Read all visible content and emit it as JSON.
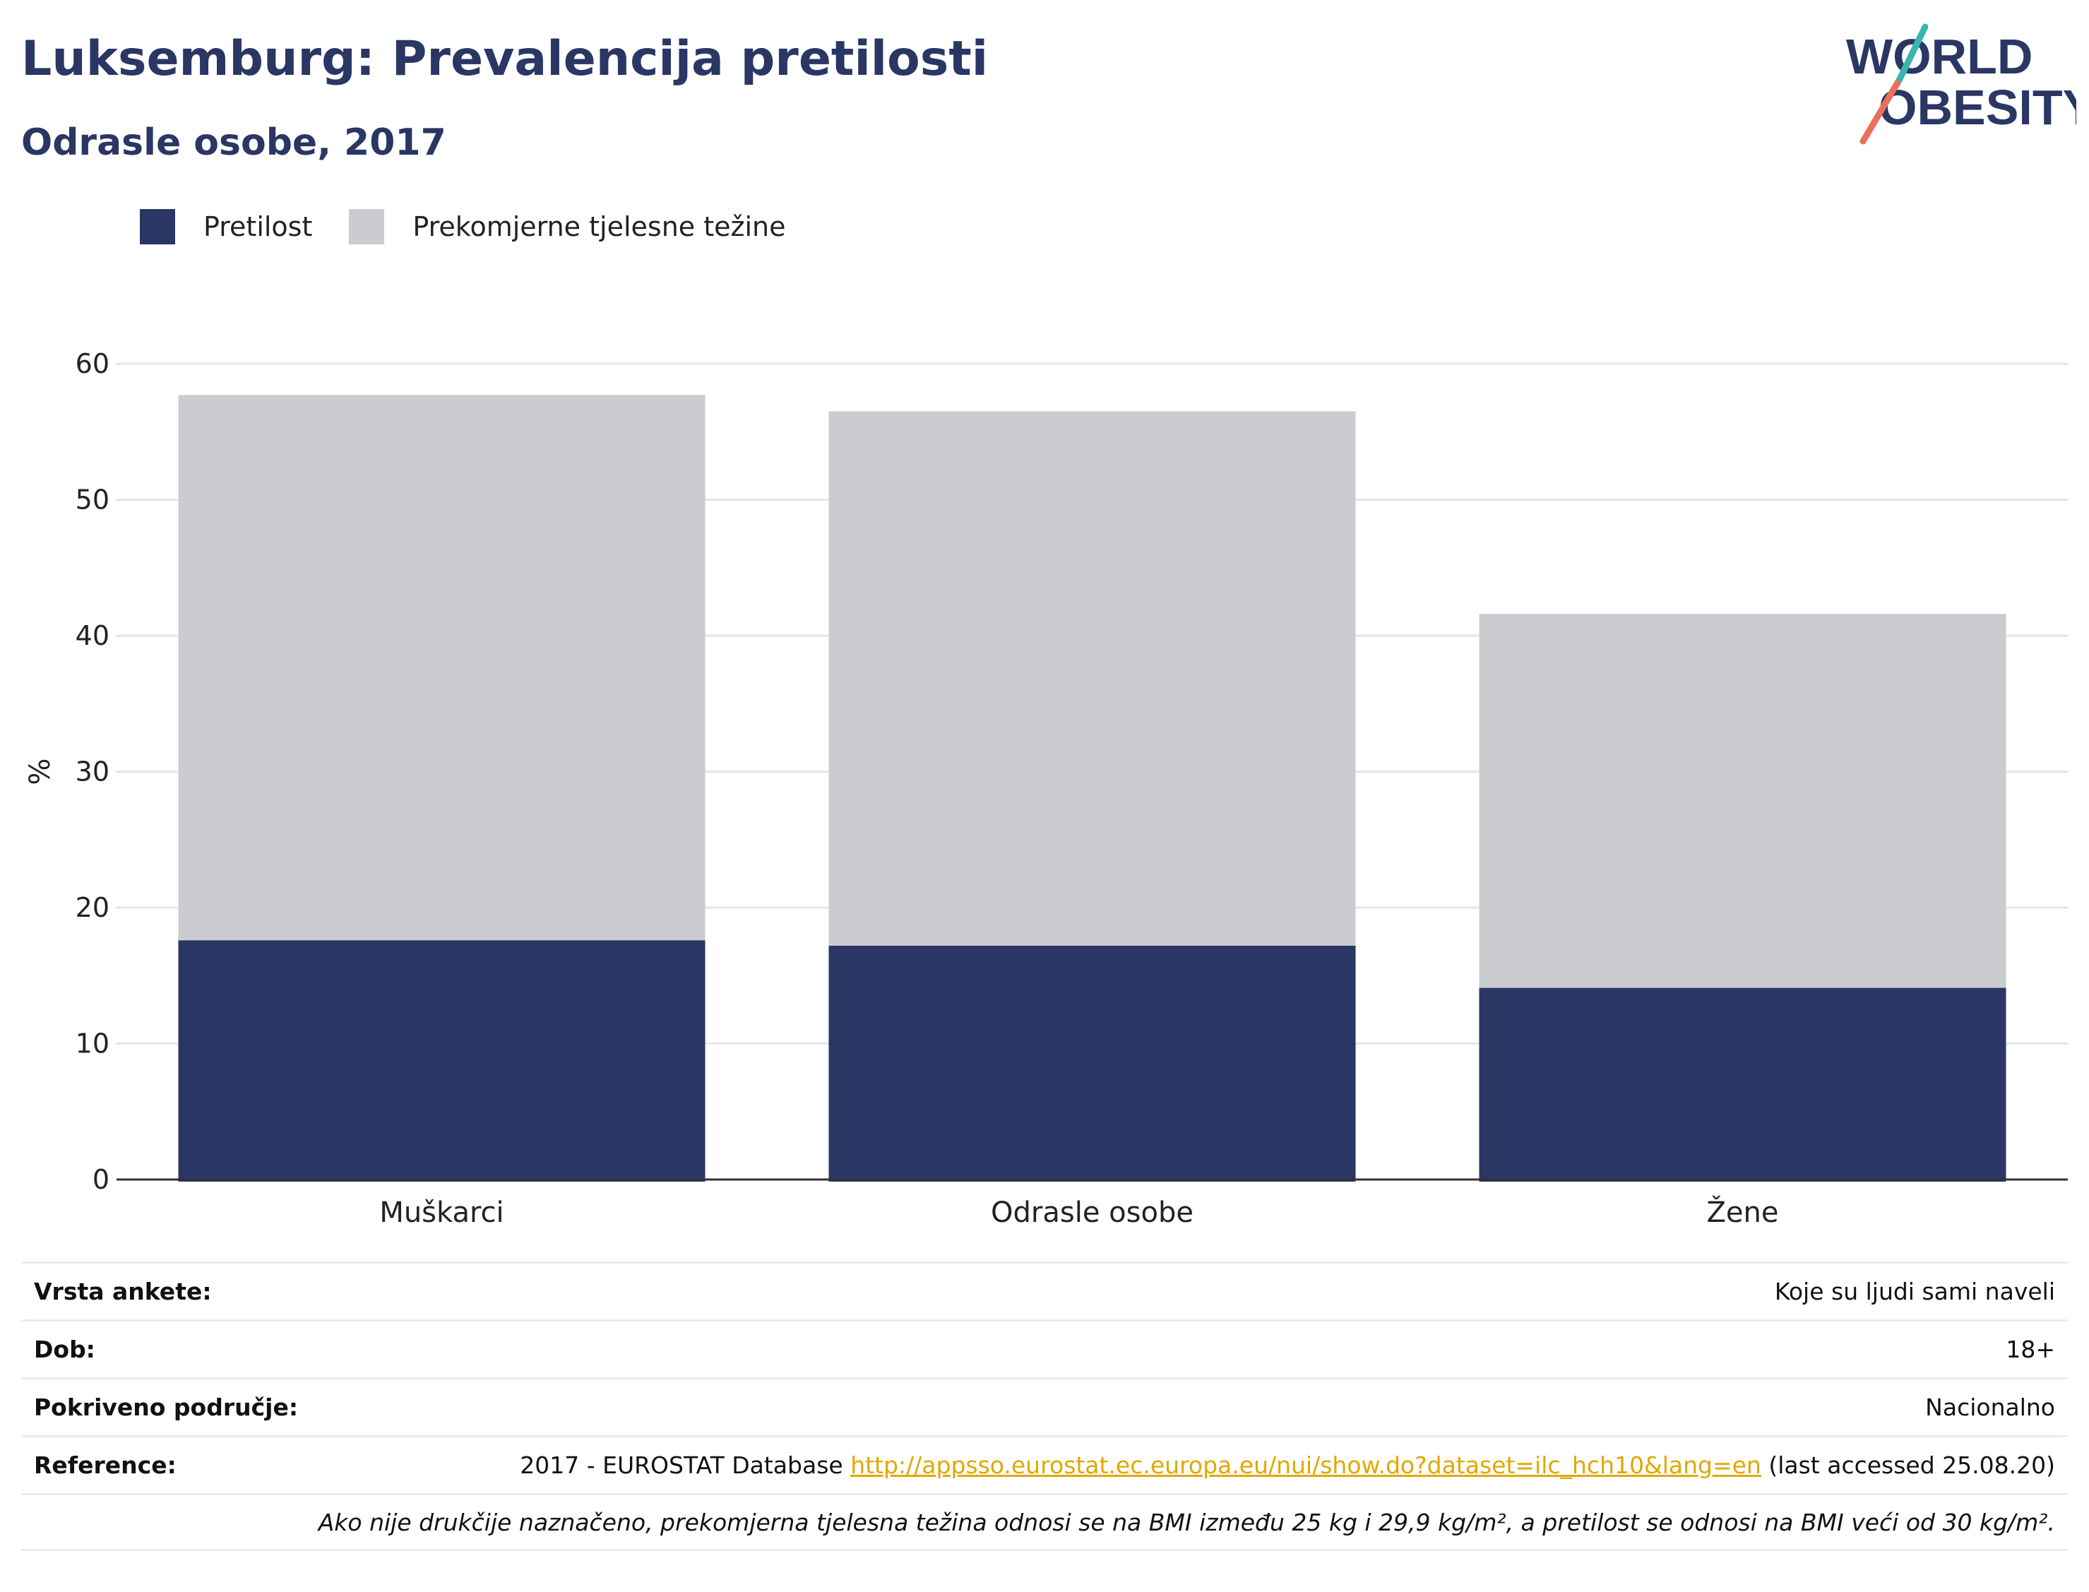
{
  "header": {
    "title": "Luksemburg: Prevalencija pretilosti",
    "subtitle": "Odrasle osobe, 2017"
  },
  "logo": {
    "line1": "WORLD",
    "line2": "OBESITY",
    "colors": [
      "#2a3663",
      "#e8705c",
      "#3ab5b0"
    ]
  },
  "colors": {
    "obesity": "#2a3663",
    "overweight": "#cacccf",
    "grid": "#e6e6e6",
    "axis": "#333333"
  },
  "chart_data": {
    "type": "bar",
    "stacked": true,
    "categories": [
      "Muškarci",
      "Odrasle osobe",
      "Žene"
    ],
    "series": [
      {
        "name": "Pretilost",
        "values": [
          17.6,
          17.2,
          14.1
        ]
      },
      {
        "name": "Prekomjerne tjelesne težine",
        "values": [
          40.1,
          39.3,
          27.5
        ]
      }
    ],
    "ylabel": "%",
    "ylim": [
      0,
      60
    ],
    "yticks": [
      0,
      10,
      20,
      30,
      40,
      50,
      60
    ],
    "grid": true,
    "legend": "top-left"
  },
  "info": {
    "survey_key": "Vrsta ankete:",
    "survey_val": "Koje su ljudi sami naveli",
    "age_key": "Dob:",
    "age_val": "18+",
    "coverage_key": "Pokriveno područje:",
    "coverage_val": "Nacionalno",
    "reference_key": "Reference:",
    "reference_prefix": "2017 - EUROSTAT Database ",
    "reference_link": "http://appsso.eurostat.ec.europa.eu/nui/show.do?dataset=ilc_hch10&lang=en",
    "reference_suffix": " (last accessed 25.08.20)",
    "note": "Ako nije drukčije naznačeno, prekomjerna tjelesna težina odnosi se na BMI između 25 kg i 29,9 kg/m², a pretilost se odnosi na BMI veći od 30 kg/m²."
  }
}
